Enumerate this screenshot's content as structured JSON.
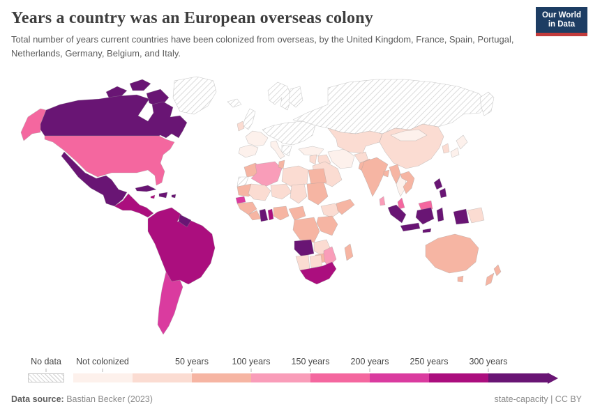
{
  "header": {
    "title": "Years a country was an European overseas colony",
    "subtitle": "Total number of years current countries have been colonized from overseas, by the United Kingdom, France, Spain, Portugal, Netherlands, Germany, Belgium, and Italy."
  },
  "logo": {
    "line1": "Our World",
    "line2": "in Data",
    "bg_color": "#1d3d63",
    "accent_color": "#c23b3c"
  },
  "legend": {
    "no_data_label": "No data",
    "first_segment_label": "Not colonized",
    "boundary_labels": [
      "50 years",
      "100 years",
      "150 years",
      "200 years",
      "250 years",
      "300 years"
    ]
  },
  "footer": {
    "source_label": "Data source:",
    "source_value": "Bastian Becker (2023)",
    "right_note": "state-capacity | CC BY"
  },
  "chart_data": {
    "type": "heatmap",
    "subtype": "world-choropleth",
    "title": "Years a country was an European overseas colony",
    "unit": "years",
    "legend_position": "bottom",
    "bins": [
      {
        "id": "no_data",
        "label": "No data",
        "color": "hatch"
      },
      {
        "id": "not_colonized",
        "label": "Not colonized",
        "color": "#fdf1ec"
      },
      {
        "id": "b0_50",
        "label": "1–50 years",
        "color": "#fbdcd2"
      },
      {
        "id": "b50_100",
        "label": "50–100 years",
        "color": "#f6b5a3"
      },
      {
        "id": "b100_150",
        "label": "100–150 years",
        "color": "#f99db9"
      },
      {
        "id": "b150_200",
        "label": "150–200 years",
        "color": "#f4679f"
      },
      {
        "id": "b200_250",
        "label": "200–250 years",
        "color": "#da3b9f"
      },
      {
        "id": "b250_300",
        "label": "250–300 years",
        "color": "#ab0e7e"
      },
      {
        "id": "b300plus",
        "label": "300+ years",
        "color": "#691574"
      }
    ],
    "countries": {
      "greenland": "no_data",
      "canada": "b300plus",
      "united_states": "b150_200",
      "mexico": "b300plus",
      "central_america": "b250_300",
      "cuba": "b300plus",
      "haiti": "b300plus",
      "jamaica": "b250_300",
      "puerto_rico": "b300plus",
      "brazil": "b250_300",
      "colombia": "b250_300",
      "venezuela": "b250_300",
      "peru": "b250_300",
      "bolivia": "b250_300",
      "ecuador": "b250_300",
      "paraguay": "b250_300",
      "guyana": "b300plus",
      "argentina": "b200_250",
      "chile": "b200_250",
      "iceland": "no_data",
      "united_kingdom": "no_data",
      "ireland": "b0_50",
      "scandinavia": "no_data",
      "france": "not_colonized",
      "spain": "not_colonized",
      "portugal": "not_colonized",
      "italy": "not_colonized",
      "central_eastern_europe": "no_data",
      "russia": "no_data",
      "turkey": "not_colonized",
      "syria": "b0_50",
      "iraq": "b0_50",
      "saudi_arabia": "b0_50",
      "iran": "not_colonized",
      "afghanistan": "b0_50",
      "pakistan": "b50_100",
      "central_asia": "b0_50",
      "china": "b0_50",
      "mongolia": "not_colonized",
      "india": "b50_100",
      "bangladesh": "b50_100",
      "myanmar": "b50_100",
      "thailand": "not_colonized",
      "vietnam": "b50_100",
      "sri_lanka": "b100_150",
      "south_korea": "b0_50",
      "japan": "not_colonized",
      "malaysia": "b150_200",
      "indonesia": "b300plus",
      "philippines": "b300plus",
      "papua_new_guinea": "b0_50",
      "australia": "b50_100",
      "new_zealand": "b50_100",
      "morocco": "b50_100",
      "western_sahara": "no_data",
      "algeria": "b100_150",
      "tunisia": "b50_100",
      "libya": "b0_50",
      "egypt": "b50_100",
      "mauritania": "b50_100",
      "mali": "b0_50",
      "niger": "b0_50",
      "chad": "b0_50",
      "sudan": "b50_100",
      "senegal": "b200_250",
      "guinea": "b50_100",
      "ivory_coast": "b50_100",
      "ghana": "b300plus",
      "togo": "b250_300",
      "nigeria": "b50_100",
      "cameroon": "b50_100",
      "ethiopia": "b0_50",
      "somalia": "b50_100",
      "kenya": "b50_100",
      "dr_congo": "b50_100",
      "angola": "b300plus",
      "zambia": "b0_50",
      "zimbabwe": "b50_100",
      "mozambique": "b100_150",
      "namibia": "b0_50",
      "botswana": "b0_50",
      "south_africa": "b250_300",
      "madagascar": "b50_100"
    }
  }
}
